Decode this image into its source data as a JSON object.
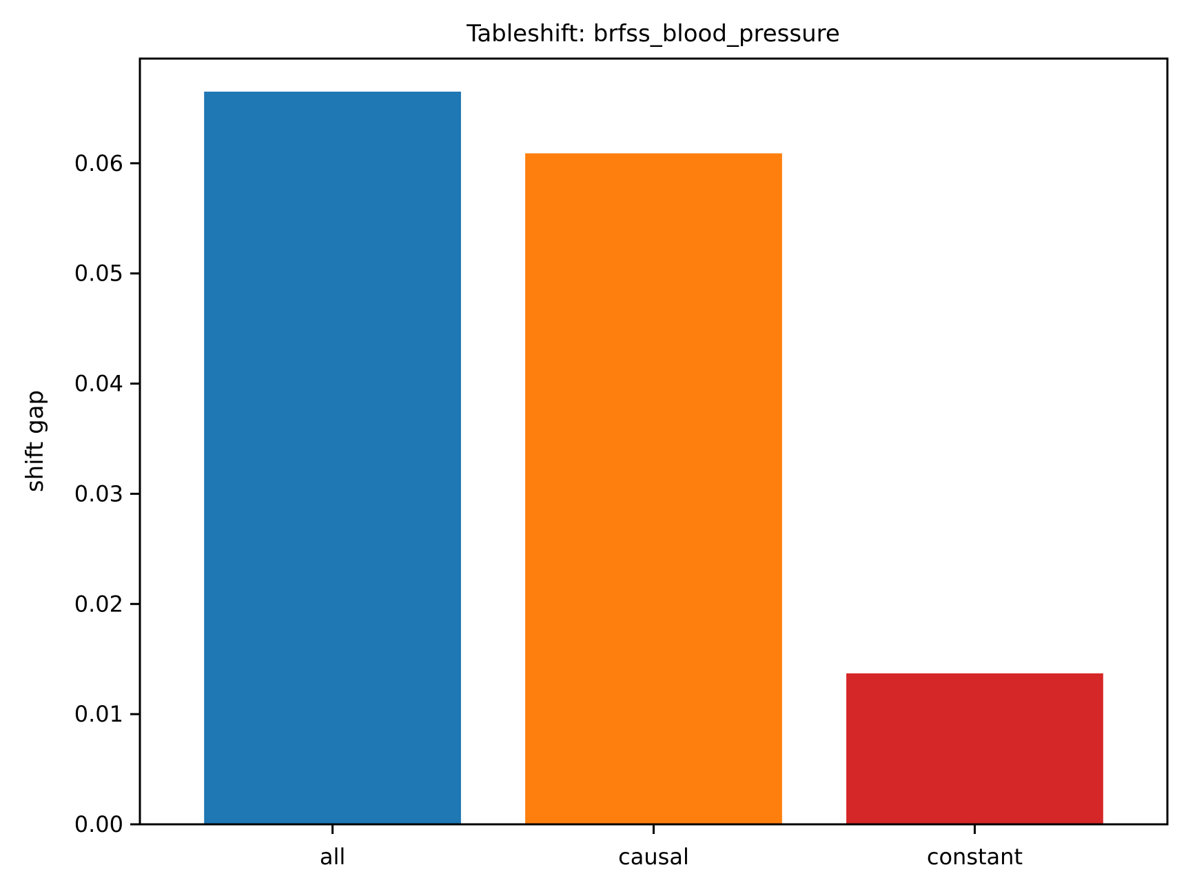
{
  "chart_data": {
    "type": "bar",
    "title": "Tableshift: brfss_blood_pressure",
    "xlabel": "",
    "ylabel": "shift gap",
    "categories": [
      "all",
      "causal",
      "constant"
    ],
    "values": [
      0.0665,
      0.0609,
      0.0137
    ],
    "colors": [
      "#1f77b4",
      "#ff7f0e",
      "#d62728"
    ],
    "ylim": [
      0,
      0.0695
    ],
    "yticks": [
      0.0,
      0.01,
      0.02,
      0.03,
      0.04,
      0.05,
      0.06
    ],
    "ytick_labels": [
      "0.00",
      "0.01",
      "0.02",
      "0.03",
      "0.04",
      "0.05",
      "0.06"
    ],
    "grid": false,
    "legend": "none"
  }
}
